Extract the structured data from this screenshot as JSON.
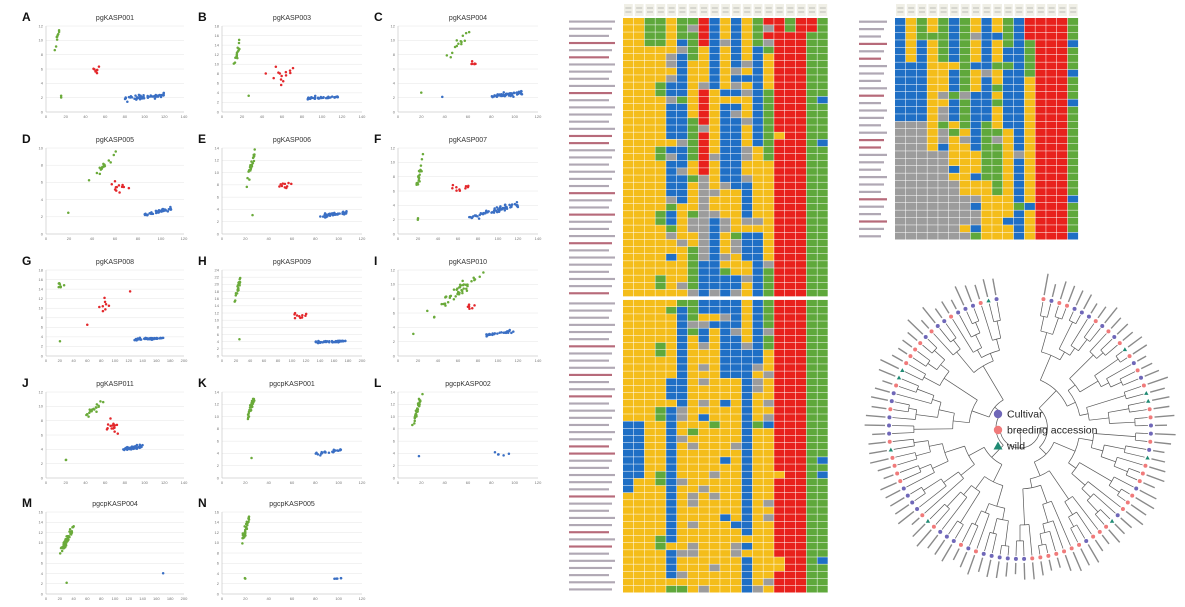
{
  "colors": {
    "group_green": "#6aaa3a",
    "group_red": "#e3272b",
    "group_blue": "#3a6fc4",
    "cell_yellow": "#f4bd1a",
    "cell_blue": "#1f6fc5",
    "cell_green": "#5fa83b",
    "cell_red": "#e8211c",
    "cell_gray": "#9c9c9c",
    "cultivar": "#6f67b8",
    "breeding": "#f07a7a",
    "wild": "#1f8a73",
    "tree_line": "#555555"
  },
  "chart_data": [
    {
      "type": "scatter",
      "panel": "A",
      "title": "pgKASP001",
      "xlim": [
        0,
        140
      ],
      "ylim": [
        0,
        12
      ],
      "x_ticks": [
        "0",
        "20",
        "40",
        "60",
        "80",
        "100",
        "120",
        "140"
      ],
      "y_ticks": [
        "0",
        "2",
        "4",
        "6",
        "8",
        "10",
        "12"
      ],
      "clusters": [
        {
          "color": "green",
          "cx": 12,
          "cy": 10.7,
          "sx": 1.6,
          "sy": 0.9,
          "n": 9
        },
        {
          "color": "red",
          "cx": 52,
          "cy": 5.8,
          "sx": 4,
          "sy": 0.5,
          "n": 8
        },
        {
          "color": "blue",
          "cx": 100,
          "cy": 2.1,
          "sx": 20,
          "sy": 0.4,
          "n": 60,
          "slope": 0.012
        },
        {
          "color": "green",
          "cx": 15,
          "cy": 2.4,
          "sx": 0.5,
          "sy": 0.2,
          "n": 2
        }
      ]
    },
    {
      "type": "scatter",
      "panel": "B",
      "title": "pgKASP003",
      "xlim": [
        0,
        140
      ],
      "ylim": [
        0,
        18
      ],
      "x_ticks": [
        "0",
        "20",
        "40",
        "60",
        "80",
        "100",
        "120",
        "140"
      ],
      "y_ticks": [
        "0",
        "2",
        "4",
        "6",
        "8",
        "10",
        "12",
        "14",
        "16",
        "18"
      ],
      "clusters": [
        {
          "color": "green",
          "cx": 16,
          "cy": 13,
          "sx": 2.5,
          "sy": 1.8,
          "n": 16
        },
        {
          "color": "red",
          "cx": 60,
          "cy": 8,
          "sx": 9,
          "sy": 1.2,
          "n": 14
        },
        {
          "color": "blue",
          "cx": 100,
          "cy": 3,
          "sx": 16,
          "sy": 0.4,
          "n": 40,
          "slope": 0.01
        },
        {
          "color": "green",
          "cx": 27,
          "cy": 3.6,
          "sx": 0.5,
          "sy": 0.2,
          "n": 1
        }
      ]
    },
    {
      "type": "scatter",
      "panel": "C",
      "title": "pgKASP004",
      "xlim": [
        0,
        120
      ],
      "ylim": [
        0,
        12
      ],
      "x_ticks": [
        "0",
        "20",
        "40",
        "60",
        "80",
        "100",
        "120"
      ],
      "y_ticks": [
        "0",
        "2",
        "4",
        "6",
        "8",
        "10",
        "12"
      ],
      "clusters": [
        {
          "color": "green",
          "cx": 53,
          "cy": 9.5,
          "sx": 5,
          "sy": 1,
          "n": 14
        },
        {
          "color": "red",
          "cx": 66,
          "cy": 6.8,
          "sx": 4,
          "sy": 0.4,
          "n": 6
        },
        {
          "color": "blue",
          "cx": 93,
          "cy": 2.4,
          "sx": 14,
          "sy": 0.4,
          "n": 60,
          "slope": 0.02
        },
        {
          "color": "green",
          "cx": 20,
          "cy": 2.8,
          "sx": 0.5,
          "sy": 0.2,
          "n": 1
        },
        {
          "color": "blue",
          "cx": 38,
          "cy": 2.2,
          "sx": 0.5,
          "sy": 0.2,
          "n": 1
        }
      ]
    },
    {
      "type": "scatter",
      "panel": "D",
      "title": "pgKASP005",
      "xlim": [
        0,
        120
      ],
      "ylim": [
        0,
        10
      ],
      "x_ticks": [
        "0",
        "20",
        "40",
        "60",
        "80",
        "100",
        "120"
      ],
      "y_ticks": [
        "0",
        "2",
        "4",
        "6",
        "8",
        "10"
      ],
      "clusters": [
        {
          "color": "green",
          "cx": 50,
          "cy": 7.8,
          "sx": 4,
          "sy": 0.7,
          "n": 18
        },
        {
          "color": "red",
          "cx": 62,
          "cy": 5.5,
          "sx": 6,
          "sy": 0.6,
          "n": 12
        },
        {
          "color": "blue",
          "cx": 97,
          "cy": 2.6,
          "sx": 12,
          "sy": 0.35,
          "n": 40,
          "slope": 0.03
        },
        {
          "color": "green",
          "cx": 19,
          "cy": 2.8,
          "sx": 0.5,
          "sy": 0.2,
          "n": 1
        }
      ]
    },
    {
      "type": "scatter",
      "panel": "E",
      "title": "pgKASP006",
      "xlim": [
        0,
        120
      ],
      "ylim": [
        0,
        14
      ],
      "x_ticks": [
        "0",
        "20",
        "40",
        "60",
        "80",
        "100",
        "120"
      ],
      "y_ticks": [
        "0",
        "2",
        "4",
        "6",
        "8",
        "10",
        "12",
        "14"
      ],
      "clusters": [
        {
          "color": "green",
          "cx": 25,
          "cy": 11.3,
          "sx": 2,
          "sy": 1.3,
          "n": 26
        },
        {
          "color": "red",
          "cx": 55,
          "cy": 8,
          "sx": 4,
          "sy": 0.5,
          "n": 10
        },
        {
          "color": "blue",
          "cx": 95,
          "cy": 3.2,
          "sx": 12,
          "sy": 0.4,
          "n": 45,
          "slope": 0.02
        },
        {
          "color": "green",
          "cx": 26,
          "cy": 3.1,
          "sx": 0.4,
          "sy": 0.2,
          "n": 1
        }
      ]
    },
    {
      "type": "scatter",
      "panel": "F",
      "title": "pgKASP007",
      "xlim": [
        0,
        140
      ],
      "ylim": [
        0,
        12
      ],
      "x_ticks": [
        "0",
        "20",
        "40",
        "60",
        "80",
        "100",
        "120",
        "140"
      ],
      "y_ticks": [
        "0",
        "2",
        "4",
        "6",
        "8",
        "10",
        "12"
      ],
      "clusters": [
        {
          "color": "green",
          "cx": 22,
          "cy": 8.5,
          "sx": 2.5,
          "sy": 1.5,
          "n": 20
        },
        {
          "color": "red",
          "cx": 60,
          "cy": 6.5,
          "sx": 8,
          "sy": 0.8,
          "n": 10
        },
        {
          "color": "blue",
          "cx": 95,
          "cy": 3.2,
          "sx": 25,
          "sy": 0.5,
          "n": 70,
          "slope": 0.04
        },
        {
          "color": "green",
          "cx": 20,
          "cy": 2.2,
          "sx": 0.5,
          "sy": 0.2,
          "n": 2
        }
      ]
    },
    {
      "type": "scatter",
      "panel": "G",
      "title": "pgKASP008",
      "xlim": [
        0,
        200
      ],
      "ylim": [
        0,
        18
      ],
      "x_ticks": [
        "0",
        "20",
        "40",
        "60",
        "80",
        "100",
        "120",
        "140",
        "160",
        "180",
        "200"
      ],
      "y_ticks": [
        "0",
        "2",
        "4",
        "6",
        "8",
        "10",
        "12",
        "14",
        "16",
        "18"
      ],
      "clusters": [
        {
          "color": "green",
          "cx": 20,
          "cy": 14.8,
          "sx": 2.5,
          "sy": 1,
          "n": 8
        },
        {
          "color": "red",
          "cx": 85,
          "cy": 10.5,
          "sx": 8,
          "sy": 1.4,
          "n": 8
        },
        {
          "color": "blue",
          "cx": 150,
          "cy": 3.6,
          "sx": 22,
          "sy": 0.3,
          "n": 55,
          "slope": 0.008
        },
        {
          "color": "green",
          "cx": 20,
          "cy": 3,
          "sx": 0.5,
          "sy": 0.2,
          "n": 1
        },
        {
          "color": "red",
          "cx": 60,
          "cy": 6.4,
          "sx": 0.5,
          "sy": 0.2,
          "n": 1
        },
        {
          "color": "red",
          "cx": 122,
          "cy": 13.5,
          "sx": 0.5,
          "sy": 0.2,
          "n": 1
        }
      ]
    },
    {
      "type": "scatter",
      "panel": "H",
      "title": "pgKASP009",
      "xlim": [
        0,
        200
      ],
      "ylim": [
        0,
        24
      ],
      "x_ticks": [
        "0",
        "20",
        "40",
        "60",
        "80",
        "100",
        "120",
        "140",
        "160",
        "180",
        "200"
      ],
      "y_ticks": [
        "0",
        "2",
        "4",
        "6",
        "8",
        "10",
        "12",
        "14",
        "16",
        "18",
        "20",
        "22",
        "24"
      ],
      "clusters": [
        {
          "color": "green",
          "cx": 23,
          "cy": 19,
          "sx": 2.5,
          "sy": 1.8,
          "n": 22
        },
        {
          "color": "red",
          "cx": 110,
          "cy": 11.5,
          "sx": 10,
          "sy": 0.8,
          "n": 10
        },
        {
          "color": "blue",
          "cx": 155,
          "cy": 4,
          "sx": 22,
          "sy": 0.3,
          "n": 45,
          "slope": 0.01
        },
        {
          "color": "green",
          "cx": 25,
          "cy": 4.5,
          "sx": 0.5,
          "sy": 0.2,
          "n": 1
        }
      ]
    },
    {
      "type": "scatter",
      "panel": "I",
      "title": "pgKASP010",
      "xlim": [
        0,
        140
      ],
      "ylim": [
        0,
        12
      ],
      "x_ticks": [
        "0",
        "20",
        "40",
        "60",
        "80",
        "100",
        "120",
        "140"
      ],
      "y_ticks": [
        "0",
        "2",
        "4",
        "6",
        "8",
        "10",
        "12"
      ],
      "clusters": [
        {
          "color": "green",
          "cx": 58,
          "cy": 8.8,
          "sx": 12,
          "sy": 1.2,
          "n": 45
        },
        {
          "color": "red",
          "cx": 75,
          "cy": 7,
          "sx": 8,
          "sy": 0.5,
          "n": 6
        },
        {
          "color": "blue",
          "cx": 102,
          "cy": 3.2,
          "sx": 14,
          "sy": 0.3,
          "n": 30,
          "slope": 0.02
        },
        {
          "color": "green",
          "cx": 15,
          "cy": 3,
          "sx": 0.5,
          "sy": 0.2,
          "n": 1
        },
        {
          "color": "green",
          "cx": 36,
          "cy": 5.5,
          "sx": 1,
          "sy": 0.2,
          "n": 2
        }
      ]
    },
    {
      "type": "scatter",
      "panel": "J",
      "title": "pgKASP011",
      "xlim": [
        0,
        140
      ],
      "ylim": [
        0,
        12
      ],
      "x_ticks": [
        "0",
        "20",
        "40",
        "60",
        "80",
        "100",
        "120",
        "140"
      ],
      "y_ticks": [
        "0",
        "2",
        "4",
        "6",
        "8",
        "10",
        "12"
      ],
      "clusters": [
        {
          "color": "green",
          "cx": 47,
          "cy": 9.5,
          "sx": 7,
          "sy": 0.8,
          "n": 20
        },
        {
          "color": "red",
          "cx": 67,
          "cy": 7,
          "sx": 6,
          "sy": 0.7,
          "n": 16
        },
        {
          "color": "blue",
          "cx": 88,
          "cy": 4.2,
          "sx": 10,
          "sy": 0.4,
          "n": 45,
          "slope": 0.02
        },
        {
          "color": "green",
          "cx": 20,
          "cy": 2.5,
          "sx": 0.5,
          "sy": 0.2,
          "n": 2
        }
      ]
    },
    {
      "type": "scatter",
      "panel": "K",
      "title": "pgcpKASP001",
      "xlim": [
        0,
        120
      ],
      "ylim": [
        0,
        14
      ],
      "x_ticks": [
        "0",
        "20",
        "40",
        "60",
        "80",
        "100",
        "120"
      ],
      "y_ticks": [
        "0",
        "2",
        "4",
        "6",
        "8",
        "10",
        "12",
        "14"
      ],
      "clusters": [
        {
          "color": "green",
          "cx": 25,
          "cy": 11.5,
          "sx": 2,
          "sy": 1.2,
          "n": 32
        },
        {
          "color": "blue",
          "cx": 90,
          "cy": 4.2,
          "sx": 12,
          "sy": 0.4,
          "n": 25,
          "slope": 0.03
        },
        {
          "color": "green",
          "cx": 25,
          "cy": 3.2,
          "sx": 0.4,
          "sy": 0.2,
          "n": 1
        }
      ]
    },
    {
      "type": "scatter",
      "panel": "L",
      "title": "pgcpKASP002",
      "xlim": [
        0,
        120
      ],
      "ylim": [
        0,
        14
      ],
      "x_ticks": [
        "0",
        "20",
        "40",
        "60",
        "80",
        "100",
        "120"
      ],
      "y_ticks": [
        "0",
        "2",
        "4",
        "6",
        "8",
        "10",
        "12",
        "14"
      ],
      "clusters": [
        {
          "color": "green",
          "cx": 17,
          "cy": 11.5,
          "sx": 1.8,
          "sy": 1.2,
          "n": 40
        },
        {
          "color": "blue",
          "cx": 87,
          "cy": 3.8,
          "sx": 6,
          "sy": 0.3,
          "n": 5
        },
        {
          "color": "blue",
          "cx": 18,
          "cy": 3.5,
          "sx": 0.5,
          "sy": 0.2,
          "n": 1
        }
      ]
    },
    {
      "type": "scatter",
      "panel": "M",
      "title": "pgcpKASP004",
      "xlim": [
        0,
        200
      ],
      "ylim": [
        0,
        16
      ],
      "x_ticks": [
        "0",
        "20",
        "40",
        "60",
        "80",
        "100",
        "120",
        "140",
        "160",
        "180",
        "200"
      ],
      "y_ticks": [
        "0",
        "2",
        "4",
        "6",
        "8",
        "10",
        "12",
        "14",
        "16"
      ],
      "clusters": [
        {
          "color": "green",
          "cx": 30,
          "cy": 10.5,
          "sx": 5,
          "sy": 1.2,
          "n": 55
        },
        {
          "color": "blue",
          "cx": 170,
          "cy": 4.2,
          "sx": 0.5,
          "sy": 0.2,
          "n": 1
        },
        {
          "color": "green",
          "cx": 30,
          "cy": 2.3,
          "sx": 0.5,
          "sy": 0.2,
          "n": 1
        }
      ]
    },
    {
      "type": "scatter",
      "panel": "N",
      "title": "pgcpKASP005",
      "xlim": [
        0,
        120
      ],
      "ylim": [
        0,
        16
      ],
      "x_ticks": [
        "0",
        "20",
        "40",
        "60",
        "80",
        "100",
        "120"
      ],
      "y_ticks": [
        "0",
        "2",
        "4",
        "6",
        "8",
        "10",
        "12",
        "14",
        "16"
      ],
      "clusters": [
        {
          "color": "green",
          "cx": 20,
          "cy": 12.5,
          "sx": 2,
          "sy": 1.4,
          "n": 35
        },
        {
          "color": "blue",
          "cx": 100,
          "cy": 3,
          "sx": 6,
          "sy": 0.2,
          "n": 5
        },
        {
          "color": "green",
          "cx": 20,
          "cy": 3.2,
          "sx": 0.4,
          "sy": 0.2,
          "n": 2
        }
      ]
    },
    {
      "type": "heatmap",
      "panel": "genotype-matrix-left",
      "columns": 19,
      "rows": 80,
      "palette": [
        "Y",
        "B",
        "G",
        "R",
        "X"
      ]
    },
    {
      "type": "heatmap",
      "panel": "genotype-matrix-right",
      "columns": 17,
      "rows": 30,
      "palette": [
        "Y",
        "B",
        "G",
        "R",
        "X"
      ]
    },
    {
      "type": "dendrogram",
      "panel": "circular-tree",
      "legend": [
        {
          "label": "Cultivar",
          "shape": "circle",
          "color_key": "cultivar"
        },
        {
          "label": "breeding accession",
          "shape": "circle",
          "color_key": "breeding"
        },
        {
          "label": "wild",
          "shape": "triangle",
          "color_key": "wild"
        }
      ]
    }
  ]
}
